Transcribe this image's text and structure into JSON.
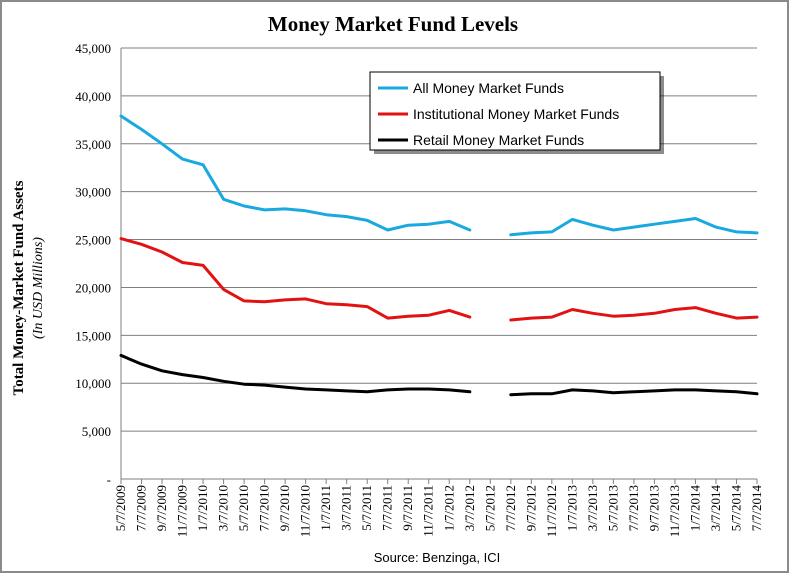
{
  "chart_data": {
    "type": "line",
    "title": "Money Market Fund Levels",
    "ylabel": "Total Money-Market Fund Assets",
    "ylabel_sub": "(In USD Millions)",
    "xlabel": "",
    "source": "Source:   Benzinga, ICI",
    "ylim": [
      0,
      45000
    ],
    "yticks": [
      0,
      5000,
      10000,
      15000,
      20000,
      25000,
      30000,
      35000,
      40000,
      45000
    ],
    "ytick_labels": [
      "-",
      "5,000",
      "10,000",
      "15,000",
      "20,000",
      "25,000",
      "30,000",
      "35,000",
      "40,000",
      "45,000"
    ],
    "xtick_labels": [
      "5/7/2009",
      "7/7/2009",
      "9/7/2009",
      "11/7/2009",
      "1/7/2010",
      "3/7/2010",
      "5/7/2010",
      "7/7/2010",
      "9/7/2010",
      "11/7/2010",
      "1/7/2011",
      "3/7/2011",
      "5/7/2011",
      "7/7/2011",
      "9/7/2011",
      "11/7/2011",
      "1/7/2012",
      "3/7/2012",
      "5/7/2012",
      "7/7/2012",
      "9/7/2012",
      "11/7/2012",
      "1/7/2013",
      "3/7/2013",
      "5/7/2013",
      "7/7/2013",
      "9/7/2013",
      "11/7/2013",
      "1/7/2014",
      "3/7/2014",
      "5/7/2014",
      "7/7/2014"
    ],
    "grid": "horizontal",
    "legend_position": "top-right",
    "x": [
      "5/7/2009",
      "7/7/2009",
      "9/7/2009",
      "11/7/2009",
      "1/7/2010",
      "3/7/2010",
      "5/7/2010",
      "7/7/2010",
      "9/7/2010",
      "11/7/2010",
      "1/7/2011",
      "3/7/2011",
      "5/7/2011",
      "7/7/2011",
      "9/7/2011",
      "11/7/2011",
      "1/7/2012",
      "3/7/2012",
      "5/7/2012",
      "7/7/2012",
      "9/7/2012",
      "11/7/2012",
      "1/7/2013",
      "3/7/2013",
      "5/7/2013",
      "7/7/2013",
      "9/7/2013",
      "11/7/2013",
      "1/7/2014",
      "3/7/2014",
      "5/7/2014",
      "7/7/2014"
    ],
    "series": [
      {
        "name": "All Money Market Funds",
        "color": "#19a9e1",
        "values": [
          37900,
          36500,
          35000,
          33400,
          32800,
          29200,
          28500,
          28100,
          28200,
          28000,
          27600,
          27400,
          27000,
          26000,
          26500,
          26600,
          26900,
          26000,
          null,
          25500,
          25700,
          25800,
          27100,
          26500,
          26000,
          26300,
          26600,
          26900,
          27200,
          26300,
          25800,
          25700
        ]
      },
      {
        "name": "Institutional Money Market Funds",
        "color": "#e31212",
        "values": [
          25100,
          24500,
          23700,
          22600,
          22300,
          19800,
          18600,
          18500,
          18700,
          18800,
          18300,
          18200,
          18000,
          16800,
          17000,
          17100,
          17600,
          16900,
          null,
          16600,
          16800,
          16900,
          17700,
          17300,
          17000,
          17100,
          17300,
          17700,
          17900,
          17300,
          16800,
          16900
        ]
      },
      {
        "name": "Retail Money Market Funds",
        "color": "#000000",
        "values": [
          12900,
          12000,
          11300,
          10900,
          10600,
          10200,
          9900,
          9800,
          9600,
          9400,
          9300,
          9200,
          9100,
          9300,
          9400,
          9400,
          9300,
          9100,
          null,
          8800,
          8900,
          8900,
          9300,
          9200,
          9000,
          9100,
          9200,
          9300,
          9300,
          9200,
          9100,
          8900
        ]
      }
    ]
  }
}
